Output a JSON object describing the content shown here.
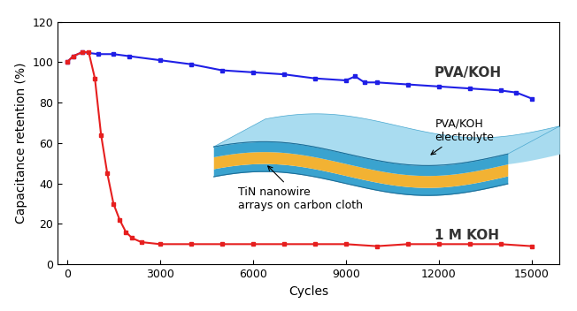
{
  "chart_data": {
    "type": "line",
    "x_label": "Cycles",
    "y_label": "Capacitance retention (%)",
    "xlim": [
      -300,
      15900
    ],
    "xticks": [
      0,
      3000,
      6000,
      9000,
      12000,
      15000
    ],
    "ylim": [
      0,
      120
    ],
    "yticks": [
      0,
      20,
      40,
      60,
      80,
      100,
      120
    ],
    "grid": false,
    "series": [
      {
        "name": "PVA/KOH",
        "color": "#1f1fe6",
        "marker": "square",
        "line_style": "solid",
        "x": [
          0,
          200,
          500,
          1000,
          1500,
          2000,
          3000,
          4000,
          5000,
          6000,
          7000,
          8000,
          9000,
          9300,
          9600,
          10000,
          11000,
          12000,
          13000,
          14000,
          14500,
          15000
        ],
        "values": [
          100,
          103,
          105,
          104,
          104,
          103,
          101,
          99,
          96,
          95,
          94,
          92,
          91,
          93,
          90,
          90,
          89,
          88,
          87,
          86,
          85,
          82
        ]
      },
      {
        "name": "1 M KOH",
        "color": "#e61f1f",
        "marker": "square",
        "line_style": "solid",
        "x": [
          0,
          200,
          500,
          700,
          900,
          1100,
          1300,
          1500,
          1700,
          1900,
          2100,
          2400,
          3000,
          4000,
          5000,
          6000,
          7000,
          8000,
          9000,
          10000,
          11000,
          12000,
          13000,
          14000,
          15000
        ],
        "values": [
          100,
          103,
          105,
          105,
          92,
          64,
          45,
          30,
          22,
          16,
          13,
          11,
          10,
          10,
          10,
          10,
          10,
          10,
          10,
          9,
          10,
          10,
          10,
          10,
          9
        ]
      }
    ],
    "annotations": [
      "PVA/KOH\nelectrolyte",
      "TiN nanowire\narrays on carbon cloth"
    ]
  }
}
